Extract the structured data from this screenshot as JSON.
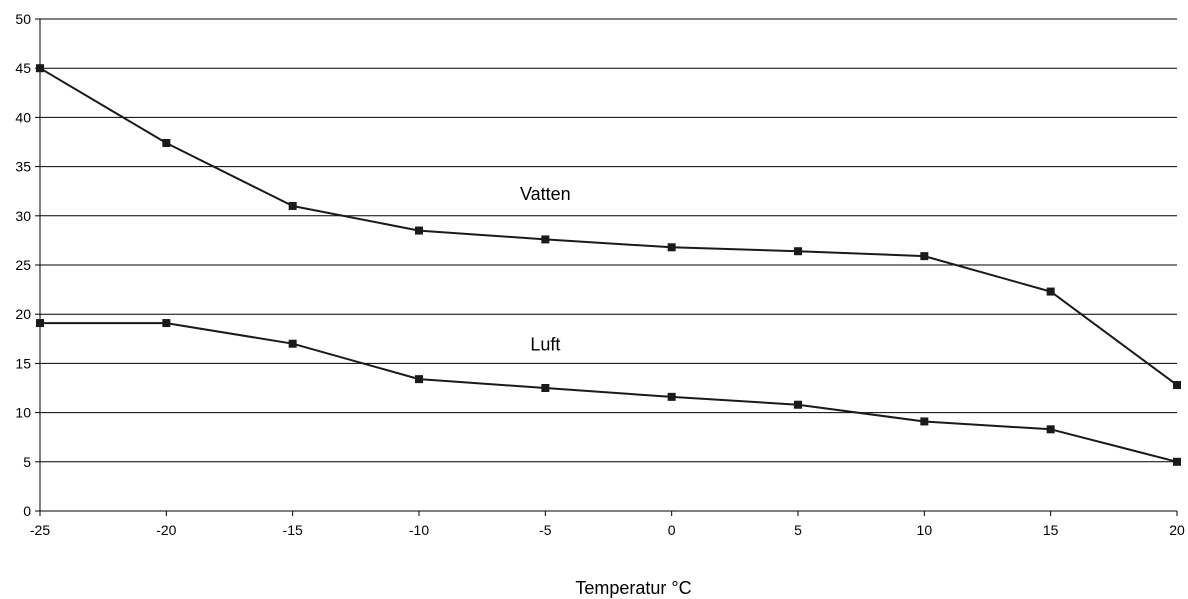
{
  "chart_data": {
    "type": "line",
    "title": "",
    "xlabel": "Temperatur °C",
    "ylabel": "",
    "x": [
      -25,
      -20,
      -15,
      -10,
      -5,
      0,
      5,
      10,
      15,
      20
    ],
    "xlim": [
      -25,
      20
    ],
    "ylim": [
      0,
      50
    ],
    "x_ticks": [
      "-25",
      "-20",
      "-15",
      "-10",
      "-5",
      "0",
      "5",
      "10",
      "15",
      "20"
    ],
    "y_ticks": [
      "0",
      "5",
      "10",
      "15",
      "20",
      "25",
      "30",
      "35",
      "40",
      "45",
      "50"
    ],
    "grid": "horizontal",
    "legend": "none",
    "series": [
      {
        "name": "Vatten",
        "values": [
          45,
          37.4,
          31,
          28.5,
          27.6,
          26.8,
          26.4,
          25.9,
          22.3,
          12.8
        ],
        "label_at": [
          -5,
          31.6
        ],
        "color": "#1a1a1a"
      },
      {
        "name": "Luft",
        "values": [
          19.1,
          19.1,
          17,
          13.4,
          12.5,
          11.6,
          10.8,
          9.1,
          8.3,
          5
        ],
        "label_at": [
          -5,
          16.3
        ],
        "color": "#1a1a1a"
      }
    ]
  }
}
